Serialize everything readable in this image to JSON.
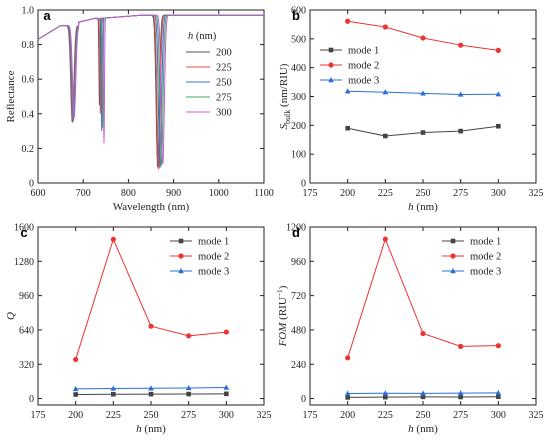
{
  "colors": {
    "mode1": "#444444",
    "mode2": "#ee3333",
    "mode3": "#2a6fd6",
    "h200": "#555555",
    "h225": "#ef4a4a",
    "h250": "#3a6fd2",
    "h275": "#3fae5c",
    "h300": "#c45bd6"
  },
  "chart_data": [
    {
      "panel": "a",
      "type": "line",
      "xlabel": "Wavelength (nm)",
      "ylabel": "Reflectance",
      "xlim": [
        600,
        1100
      ],
      "ylim": [
        0,
        1.0
      ],
      "xticks": [
        "600",
        "700",
        "800",
        "900",
        "1000",
        "1100"
      ],
      "yticks": [
        "0",
        "0.2",
        "0.4",
        "0.6",
        "0.8",
        "1.0"
      ],
      "legend_title": "h",
      "legend_title_unit": "(nm)",
      "legend_position": "right",
      "series": [
        {
          "name": "200",
          "dips": [
            [
              676,
              0.35,
              5
            ],
            [
              736,
              0.45,
              1.5
            ],
            [
              865,
              0.09,
              5
            ]
          ]
        },
        {
          "name": "225",
          "dips": [
            [
              677,
              0.35,
              5
            ],
            [
              738,
              0.4,
              1.5
            ],
            [
              867,
              0.08,
              5
            ]
          ]
        },
        {
          "name": "250",
          "dips": [
            [
              678,
              0.36,
              5
            ],
            [
              741,
              0.3,
              1.5
            ],
            [
              870,
              0.09,
              5
            ]
          ]
        },
        {
          "name": "275",
          "dips": [
            [
              679,
              0.37,
              5
            ],
            [
              743,
              0.32,
              1.5
            ],
            [
              873,
              0.1,
              5
            ]
          ]
        },
        {
          "name": "300",
          "dips": [
            [
              680,
              0.38,
              5
            ],
            [
              746,
              0.23,
              1.5
            ],
            [
              876,
              0.11,
              5
            ]
          ]
        }
      ]
    },
    {
      "panel": "b",
      "type": "line",
      "xlabel": "h (nm)",
      "ylabel": "S_bulk (nm/RIU)",
      "xlim": [
        175,
        325
      ],
      "ylim": [
        0,
        600
      ],
      "xticks": [
        "175",
        "200",
        "225",
        "250",
        "275",
        "300",
        "325"
      ],
      "yticks": [
        "0",
        "100",
        "200",
        "300",
        "400",
        "500",
        "600"
      ],
      "x": [
        200,
        225,
        250,
        275,
        300
      ],
      "legend_position": "upper-left",
      "series": [
        {
          "name": "mode 1",
          "values": [
            190,
            163,
            175,
            180,
            197
          ]
        },
        {
          "name": "mode 2",
          "values": [
            561,
            541,
            503,
            478,
            460
          ]
        },
        {
          "name": "mode 3",
          "values": [
            318,
            315,
            311,
            307,
            308
          ]
        }
      ]
    },
    {
      "panel": "c",
      "type": "line",
      "xlabel": "h (nm)",
      "ylabel": "Q",
      "xlim": [
        175,
        325
      ],
      "ylim": [
        -60,
        1600
      ],
      "xticks": [
        "175",
        "200",
        "225",
        "250",
        "275",
        "300",
        "325"
      ],
      "yticks": [
        "0",
        "320",
        "640",
        "960",
        "1280",
        "1600"
      ],
      "x": [
        200,
        225,
        250,
        275,
        300
      ],
      "legend_position": "upper-right",
      "series": [
        {
          "name": "mode 1",
          "values": [
            38,
            40,
            41,
            42,
            44
          ]
        },
        {
          "name": "mode 2",
          "values": [
            365,
            1485,
            675,
            585,
            620
          ]
        },
        {
          "name": "mode 3",
          "values": [
            90,
            94,
            96,
            99,
            103
          ]
        }
      ]
    },
    {
      "panel": "d",
      "type": "line",
      "xlabel": "h (nm)",
      "ylabel": "FOM (RIU^-1)",
      "xlim": [
        175,
        325
      ],
      "ylim": [
        -45,
        1200
      ],
      "xticks": [
        "175",
        "200",
        "225",
        "250",
        "275",
        "300",
        "325"
      ],
      "yticks": [
        "0",
        "240",
        "480",
        "720",
        "960",
        "1200"
      ],
      "x": [
        200,
        225,
        250,
        275,
        300
      ],
      "legend_position": "upper-right",
      "series": [
        {
          "name": "mode 1",
          "values": [
            8,
            10,
            12,
            11,
            13
          ]
        },
        {
          "name": "mode 2",
          "values": [
            285,
            1115,
            455,
            365,
            370
          ]
        },
        {
          "name": "mode 3",
          "values": [
            35,
            37,
            36,
            38,
            40
          ]
        }
      ]
    }
  ]
}
